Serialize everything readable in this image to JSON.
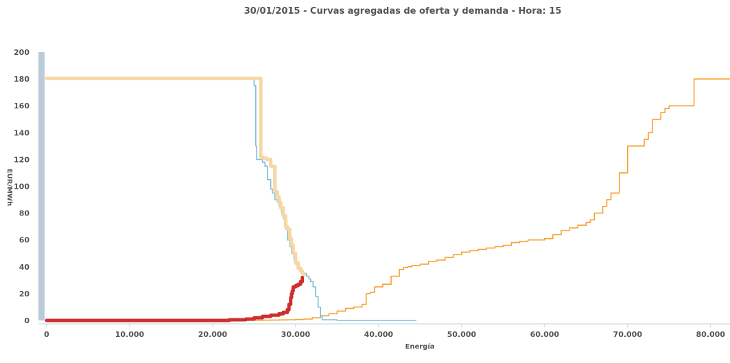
{
  "chart_data": {
    "type": "line",
    "title": "30/01/2015 - Curvas agregadas de oferta y demanda - Hora: 15",
    "xlabel": "Energía",
    "ylabel": "EUR/MWh",
    "xlim": [
      -1000,
      82500
    ],
    "ylim": [
      0,
      200
    ],
    "x_ticks": [
      {
        "value": 0,
        "label": "0"
      },
      {
        "value": 10000,
        "label": "10.000"
      },
      {
        "value": 20000,
        "label": "20.000"
      },
      {
        "value": 30000,
        "label": "30.000"
      },
      {
        "value": 40000,
        "label": "40.000"
      },
      {
        "value": 50000,
        "label": "50.000"
      },
      {
        "value": 60000,
        "label": "60.000"
      },
      {
        "value": 70000,
        "label": "70.000"
      },
      {
        "value": 80000,
        "label": "80.000"
      }
    ],
    "y_ticks": [
      {
        "value": 0,
        "label": "0"
      },
      {
        "value": 20,
        "label": "20"
      },
      {
        "value": 40,
        "label": "40"
      },
      {
        "value": 60,
        "label": "60"
      },
      {
        "value": 80,
        "label": "80"
      },
      {
        "value": 100,
        "label": "100"
      },
      {
        "value": 120,
        "label": "120"
      },
      {
        "value": 140,
        "label": "140"
      },
      {
        "value": 160,
        "label": "160"
      },
      {
        "value": 180,
        "label": "180"
      },
      {
        "value": 200,
        "label": "200"
      }
    ],
    "series": [
      {
        "key": "offer_full",
        "color": "#f7a030",
        "line_weight": "thin",
        "x": [
          0,
          20000,
          24000,
          25000,
          26000,
          27000,
          28000,
          29000,
          30000,
          31000,
          32000,
          33000,
          34000,
          35000,
          36000,
          37000,
          38000,
          38500,
          38500,
          39000,
          39500,
          39500,
          40500,
          41500,
          42500,
          43000,
          43500,
          44000,
          45000,
          46000,
          47000,
          48000,
          49000,
          50000,
          51000,
          52000,
          53000,
          54000,
          55000,
          56000,
          57000,
          58000,
          59000,
          60000,
          61000,
          62000,
          63000,
          64000,
          65000,
          65500,
          66000,
          67000,
          67500,
          68000,
          69000,
          69500,
          70000,
          70500,
          71000,
          72000,
          72500,
          73000,
          74000,
          74500,
          75000,
          75500,
          76000,
          77000,
          78000,
          78000,
          79000,
          80000,
          81000,
          82500
        ],
        "y": [
          0,
          0,
          0,
          0.1,
          0.2,
          0.3,
          0.4,
          0.5,
          0.7,
          1.0,
          2.0,
          3.5,
          5.0,
          7.0,
          9.0,
          10.0,
          12.0,
          16.0,
          20.0,
          21.0,
          24.0,
          25.0,
          27.0,
          33.0,
          38.0,
          39.5,
          40.0,
          41.0,
          42.0,
          44.0,
          45.0,
          47.0,
          49.0,
          51.0,
          52.0,
          53.0,
          54.0,
          55.0,
          56.0,
          58.0,
          59.0,
          60.0,
          60.0,
          61.0,
          64.0,
          67.0,
          69.0,
          71.0,
          73.0,
          75.0,
          80.0,
          85.0,
          90.0,
          95.0,
          110.0,
          110.0,
          130.0,
          130.0,
          130.0,
          135.0,
          140.0,
          150.0,
          155.0,
          158.0,
          160.0,
          160.0,
          160.0,
          160.0,
          160.0,
          180.0,
          180.0,
          180.0,
          180.0,
          180.0
        ]
      },
      {
        "key": "demand_full",
        "color": "#7bbfdc",
        "line_weight": "thin",
        "x": [
          0,
          25000,
          25000,
          25200,
          25300,
          26000,
          26300,
          26600,
          27000,
          27200,
          27500,
          27800,
          28000,
          28300,
          28600,
          28800,
          29000,
          29300,
          29500,
          29800,
          30000,
          30300,
          30500,
          30800,
          31000,
          31300,
          31600,
          31800,
          32100,
          32400,
          32700,
          33000,
          33200,
          35000,
          40000,
          44500
        ],
        "y": [
          180,
          180,
          175,
          130,
          120,
          118,
          115,
          105,
          98,
          95,
          90,
          88,
          85,
          80,
          75,
          68,
          60,
          55,
          50,
          45,
          42,
          39,
          37,
          36,
          35,
          33,
          31,
          29,
          25,
          18,
          10,
          3,
          0.5,
          0,
          0,
          0
        ]
      },
      {
        "key": "demand_matched",
        "color": "#f6d7a6",
        "line_weight": "thick",
        "x": [
          0,
          25800,
          25800,
          26000,
          26500,
          27000,
          27000,
          27400,
          27500,
          27800,
          28000,
          28200,
          28500,
          28800,
          29000,
          29300,
          29500,
          29700,
          30000,
          30300,
          30600,
          30800,
          31000
        ],
        "y": [
          180.5,
          180.5,
          122,
          121,
          120,
          120,
          115,
          115,
          96,
          92,
          88,
          84,
          78,
          70,
          68,
          61,
          56,
          50,
          43,
          39,
          37,
          35,
          34
        ]
      },
      {
        "key": "offer_matched",
        "color": "#cf2e2e",
        "line_weight": "thick",
        "x": [
          0,
          20000,
          22000,
          24000,
          25000,
          26000,
          27000,
          28000,
          28500,
          29000,
          29200,
          29400,
          29500,
          29600,
          29700,
          30000,
          30300,
          30600,
          30800
        ],
        "y": [
          0,
          0,
          0.5,
          1,
          2,
          3,
          4,
          5,
          6,
          8,
          12,
          17,
          20,
          22,
          25,
          26,
          27,
          29,
          32
        ]
      }
    ]
  }
}
